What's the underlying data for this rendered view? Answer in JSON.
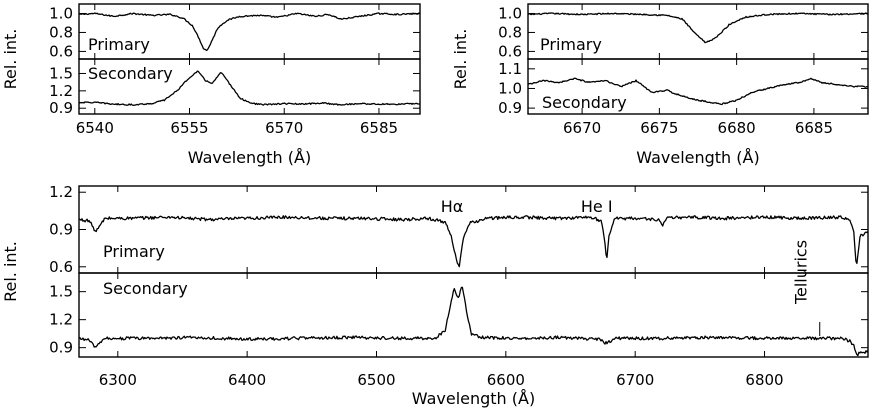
{
  "chart_data": [
    {
      "type": "line",
      "id": "top-left",
      "xlabel": "Wavelength (Å)",
      "ylabel": "Rel. int.",
      "xlim": [
        6537.5,
        6591.5
      ],
      "xticks": [
        6540,
        6555,
        6570,
        6585
      ],
      "xtick_labels": [
        "6540",
        "6555",
        "6570",
        "6585"
      ],
      "panels": [
        {
          "label": "Primary",
          "ylim": [
            0.52,
            1.1
          ],
          "yticks": [
            0.6,
            0.8,
            1.0
          ],
          "ytick_labels": [
            "0.6",
            "0.8",
            "1.0"
          ],
          "series": [
            {
              "x": [
                6537.5,
                6540,
                6543,
                6546,
                6549,
                6552,
                6554,
                6555.5,
                6556.5,
                6557.2,
                6557.8,
                6558.6,
                6559.5,
                6561,
                6563,
                6566,
                6569,
                6572,
                6575,
                6577,
                6579,
                6582,
                6585,
                6588,
                6591.5
              ],
              "y": [
                0.99,
                1.0,
                0.97,
                1.0,
                0.98,
                0.99,
                0.95,
                0.87,
                0.74,
                0.63,
                0.61,
                0.72,
                0.85,
                0.93,
                0.97,
                0.98,
                0.96,
                1.0,
                0.97,
                0.99,
                0.94,
                0.97,
                1.0,
                0.99,
                1.0
              ]
            }
          ]
        },
        {
          "label": "Secondary",
          "ylim": [
            0.8,
            1.75
          ],
          "yticks": [
            0.9,
            1.2,
            1.5
          ],
          "ytick_labels": [
            "0.9",
            "1.2",
            "1.5"
          ],
          "series": [
            {
              "x": [
                6537.5,
                6540,
                6543,
                6546,
                6549,
                6551,
                6553,
                6555,
                6556.3,
                6557.5,
                6558.6,
                6560,
                6561.5,
                6563,
                6565,
                6567,
                6570,
                6573,
                6576,
                6579,
                6582,
                6585,
                6588,
                6591.5
              ],
              "y": [
                1.0,
                1.0,
                0.97,
                0.96,
                0.98,
                1.04,
                1.2,
                1.43,
                1.54,
                1.38,
                1.33,
                1.52,
                1.3,
                1.07,
                0.98,
                0.96,
                0.98,
                0.97,
                0.99,
                0.96,
                0.98,
                0.97,
                0.97,
                0.98
              ]
            }
          ]
        }
      ]
    },
    {
      "type": "line",
      "id": "top-right",
      "xlabel": "Wavelength (Å)",
      "ylabel": "Rel. int.",
      "xlim": [
        6666.5,
        6688.5
      ],
      "xticks": [
        6670,
        6675,
        6680,
        6685
      ],
      "xtick_labels": [
        "6670",
        "6675",
        "6680",
        "6685"
      ],
      "panels": [
        {
          "label": "Primary",
          "ylim": [
            0.52,
            1.1
          ],
          "yticks": [
            0.6,
            0.8,
            1.0
          ],
          "ytick_labels": [
            "0.6",
            "0.8",
            "1.0"
          ],
          "series": [
            {
              "x": [
                6666.5,
                6668,
                6670,
                6672,
                6674,
                6675.5,
                6676.5,
                6677.3,
                6678,
                6678.7,
                6679.5,
                6680.5,
                6682,
                6684,
                6686,
                6688.5
              ],
              "y": [
                0.99,
                1.0,
                0.99,
                1.0,
                0.99,
                0.98,
                0.94,
                0.79,
                0.69,
                0.75,
                0.88,
                0.96,
                0.99,
                1.0,
                0.99,
                1.0
              ]
            }
          ]
        },
        {
          "label": "Secondary",
          "ylim": [
            0.87,
            1.15
          ],
          "yticks": [
            0.9,
            1.0,
            1.1
          ],
          "ytick_labels": [
            "0.9",
            "1.0",
            "1.1"
          ],
          "series": [
            {
              "x": [
                6666.5,
                6667.5,
                6668.5,
                6669.5,
                6670.5,
                6671.5,
                6672.5,
                6673.5,
                6674.5,
                6675.5,
                6676.5,
                6677.5,
                6678.3,
                6679,
                6680,
                6681,
                6682,
                6683,
                6684,
                6684.8,
                6685.5,
                6686.5,
                6687.5,
                6688.5
              ],
              "y": [
                1.02,
                1.04,
                1.03,
                1.05,
                1.03,
                1.04,
                1.01,
                1.04,
                0.98,
                0.99,
                0.96,
                0.94,
                0.93,
                0.92,
                0.94,
                0.98,
                1.0,
                1.02,
                1.03,
                1.05,
                1.03,
                1.02,
                1.01,
                1.01
              ]
            }
          ]
        }
      ]
    },
    {
      "type": "line",
      "id": "bottom",
      "xlabel": "Wavelength (Å)",
      "ylabel": "Rel. int.",
      "xlim": [
        6270,
        6880
      ],
      "xticks": [
        6300,
        6400,
        6500,
        6600,
        6700,
        6800
      ],
      "xtick_labels": [
        "6300",
        "6400",
        "6500",
        "6600",
        "6700",
        "6800"
      ],
      "annotations": [
        {
          "text": "Hα",
          "x": 6563
        },
        {
          "text": "He I",
          "x": 6678
        },
        {
          "text": "Tellurics",
          "x": 6845
        }
      ],
      "panels": [
        {
          "label": "Primary",
          "ylim": [
            0.55,
            1.25
          ],
          "yticks": [
            0.6,
            0.9,
            1.2
          ],
          "ytick_labels": [
            "0.6",
            "0.9",
            "1.2"
          ],
          "series": [
            {
              "x": [
                6270,
                6278,
                6283,
                6290,
                6310,
                6340,
                6370,
                6400,
                6430,
                6460,
                6490,
                6520,
                6540,
                6553,
                6558,
                6562,
                6564,
                6567,
                6572,
                6585,
                6610,
                6640,
                6665,
                6674,
                6677,
                6678,
                6680,
                6684,
                6700,
                6718,
                6721,
                6724,
                6740,
                6770,
                6800,
                6830,
                6860,
                6866,
                6869,
                6871,
                6874,
                6880
              ],
              "y": [
                0.98,
                0.97,
                0.88,
                0.99,
                0.99,
                1.0,
                0.98,
                0.99,
                1.0,
                0.99,
                0.99,
                0.98,
                0.99,
                0.96,
                0.84,
                0.65,
                0.6,
                0.82,
                0.95,
                0.99,
                1.0,
                0.99,
                1.0,
                0.97,
                0.75,
                0.66,
                0.86,
                0.99,
                0.99,
                0.98,
                0.93,
                0.99,
                1.0,
                0.99,
                1.0,
                0.99,
                1.0,
                0.98,
                0.88,
                0.6,
                0.85,
                0.88
              ]
            }
          ]
        },
        {
          "label": "Secondary",
          "ylim": [
            0.8,
            1.7
          ],
          "yticks": [
            0.9,
            1.2,
            1.5
          ],
          "ytick_labels": [
            "0.9",
            "1.2",
            "1.5"
          ],
          "series": [
            {
              "x": [
                6270,
                6278,
                6283,
                6290,
                6320,
                6360,
                6400,
                6440,
                6480,
                6520,
                6545,
                6553,
                6557,
                6560,
                6563,
                6566,
                6569,
                6573,
                6580,
                6610,
                6640,
                6672,
                6677,
                6680,
                6684,
                6720,
                6760,
                6800,
                6830,
                6860,
                6866,
                6869,
                6871,
                6874,
                6880
              ],
              "y": [
                1.0,
                0.98,
                0.9,
                1.0,
                1.0,
                1.01,
                0.99,
                1.0,
                1.01,
                1.0,
                1.0,
                1.08,
                1.35,
                1.55,
                1.42,
                1.56,
                1.35,
                1.05,
                1.01,
                1.0,
                1.01,
                0.99,
                0.95,
                0.96,
                1.0,
                1.0,
                1.01,
                1.0,
                1.0,
                1.0,
                0.97,
                0.92,
                0.82,
                0.85,
                0.86
              ]
            }
          ]
        }
      ]
    }
  ]
}
